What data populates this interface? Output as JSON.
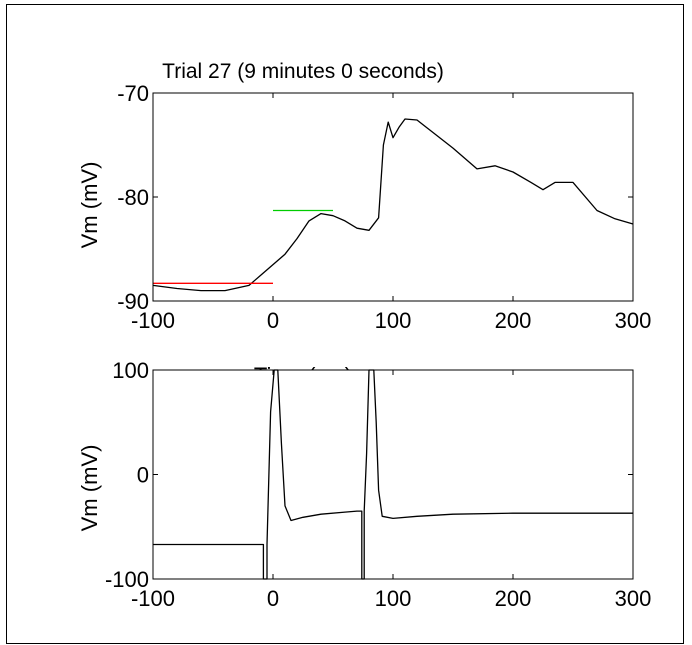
{
  "chart_data": [
    {
      "type": "line",
      "title": "Trial 27 (9 minutes  0 seconds)",
      "xlabel": "Time (ms)",
      "ylabel": "Vm (mV)",
      "xlim": [
        -100,
        300
      ],
      "ylim": [
        -90,
        -70
      ],
      "xticks": [
        "-100",
        "0",
        "100",
        "200",
        "300"
      ],
      "yticks": [
        "-70",
        "-80",
        "-90"
      ],
      "series": [
        {
          "color": "#000000",
          "x": [
            -100,
            -80,
            -60,
            -40,
            -20,
            -10,
            0,
            10,
            20,
            30,
            40,
            50,
            60,
            70,
            80,
            88,
            92,
            96,
            100,
            105,
            110,
            120,
            130,
            150,
            170,
            185,
            200,
            215,
            225,
            235,
            250,
            270,
            285,
            300
          ],
          "y": [
            -88.5,
            -88.8,
            -89.0,
            -89.0,
            -88.5,
            -87.5,
            -86.5,
            -85.5,
            -84.0,
            -82.3,
            -81.6,
            -81.8,
            -82.3,
            -83.0,
            -83.2,
            -82.0,
            -75.0,
            -72.8,
            -74.3,
            -73.3,
            -72.5,
            -72.6,
            -73.5,
            -75.3,
            -77.3,
            -77.0,
            -77.6,
            -78.6,
            -79.3,
            -78.6,
            -78.6,
            -81.3,
            -82.1,
            -82.6
          ]
        },
        {
          "color": "#ff0000",
          "x": [
            -100,
            0
          ],
          "y": [
            -88.3,
            -88.3
          ]
        },
        {
          "color": "#00cc00",
          "x": [
            0,
            50
          ],
          "y": [
            -81.3,
            -81.3
          ]
        }
      ]
    },
    {
      "type": "line",
      "title": "",
      "xlabel": "",
      "ylabel": "Vm (mV)",
      "xlim": [
        -100,
        300
      ],
      "ylim": [
        -100,
        100
      ],
      "xticks": [
        "-100",
        "0",
        "100",
        "200",
        "300"
      ],
      "yticks": [
        "100",
        "0",
        "-100"
      ],
      "series": [
        {
          "color": "#000000",
          "x": [
            -100,
            -20,
            -10,
            -8,
            -8,
            -5,
            -5,
            -2,
            1,
            4,
            7,
            10,
            15,
            25,
            40,
            60,
            70,
            72,
            74,
            74,
            76,
            76,
            78,
            80,
            82,
            84,
            86,
            88,
            91,
            100,
            120,
            150,
            200,
            250,
            300
          ],
          "y": [
            -67,
            -67,
            -67,
            -67,
            -100,
            -100,
            -67,
            60,
            100,
            100,
            30,
            -30,
            -44,
            -41,
            -38,
            -36,
            -35,
            -35,
            -35,
            -100,
            -100,
            -35,
            20,
            100,
            100,
            100,
            50,
            -15,
            -40,
            -42,
            -40,
            -38,
            -37,
            -37,
            -37
          ]
        }
      ]
    }
  ]
}
